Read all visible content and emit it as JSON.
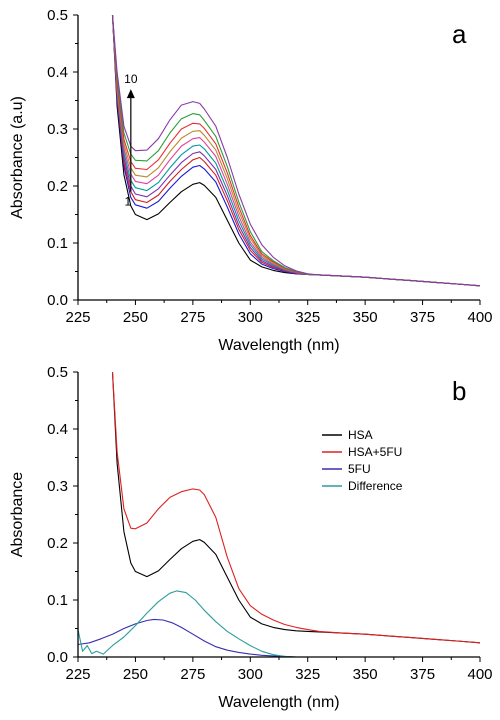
{
  "chart_data": [
    {
      "type": "line",
      "panel_label": "a",
      "xlabel": "Wavelength (nm)",
      "ylabel": "Absorbance (a.u)",
      "xlim": [
        225,
        400
      ],
      "ylim": [
        0,
        0.5
      ],
      "xticks": [
        225,
        250,
        275,
        300,
        325,
        350,
        375,
        400
      ],
      "yticks": [
        0.0,
        0.1,
        0.2,
        0.3,
        0.4,
        0.5
      ],
      "ytick_labels": [
        "0.0",
        "0.1",
        "0.2",
        "0.3",
        "0.4",
        "0.5"
      ],
      "grid": false,
      "annotation": {
        "top_label": "10",
        "bottom_label": "1",
        "x": 248,
        "y_start": 0.19,
        "y_end": 0.37
      },
      "x": [
        240,
        242,
        245,
        248,
        250,
        255,
        260,
        265,
        270,
        275,
        278,
        280,
        285,
        290,
        295,
        300,
        305,
        310,
        315,
        320,
        325,
        330,
        340,
        350,
        360,
        370,
        380,
        390,
        400
      ],
      "series": [
        {
          "color": "#000000",
          "values": [
            0.5,
            0.34,
            0.22,
            0.165,
            0.15,
            0.141,
            0.151,
            0.171,
            0.19,
            0.203,
            0.206,
            0.201,
            0.18,
            0.14,
            0.1,
            0.07,
            0.058,
            0.052,
            0.048,
            0.046,
            0.045,
            0.044,
            0.042,
            0.04,
            0.037,
            0.034,
            0.031,
            0.028,
            0.025
          ]
        },
        {
          "color": "#1a1ad6",
          "values": [
            0.5,
            0.35,
            0.235,
            0.18,
            0.167,
            0.161,
            0.173,
            0.196,
            0.217,
            0.233,
            0.236,
            0.23,
            0.207,
            0.163,
            0.116,
            0.081,
            0.063,
            0.055,
            0.05,
            0.046,
            0.045,
            0.044,
            0.042,
            0.04,
            0.037,
            0.034,
            0.031,
            0.028,
            0.025
          ]
        },
        {
          "color": "#d02020",
          "values": [
            0.5,
            0.355,
            0.242,
            0.19,
            0.176,
            0.171,
            0.184,
            0.208,
            0.229,
            0.246,
            0.25,
            0.243,
            0.219,
            0.174,
            0.124,
            0.087,
            0.066,
            0.057,
            0.051,
            0.047,
            0.045,
            0.044,
            0.042,
            0.04,
            0.037,
            0.034,
            0.031,
            0.028,
            0.025
          ]
        },
        {
          "color": "#7b2fb0",
          "values": [
            0.5,
            0.36,
            0.25,
            0.2,
            0.186,
            0.181,
            0.195,
            0.219,
            0.241,
            0.257,
            0.26,
            0.253,
            0.229,
            0.183,
            0.131,
            0.092,
            0.069,
            0.059,
            0.052,
            0.047,
            0.045,
            0.044,
            0.042,
            0.04,
            0.037,
            0.034,
            0.031,
            0.028,
            0.025
          ]
        },
        {
          "color": "#009999",
          "values": [
            0.5,
            0.365,
            0.258,
            0.21,
            0.197,
            0.192,
            0.206,
            0.232,
            0.255,
            0.27,
            0.272,
            0.265,
            0.24,
            0.193,
            0.139,
            0.097,
            0.072,
            0.061,
            0.053,
            0.048,
            0.045,
            0.044,
            0.042,
            0.04,
            0.037,
            0.034,
            0.031,
            0.028,
            0.025
          ]
        },
        {
          "color": "#e040a0",
          "values": [
            0.5,
            0.37,
            0.266,
            0.221,
            0.208,
            0.204,
            0.219,
            0.246,
            0.27,
            0.283,
            0.285,
            0.277,
            0.252,
            0.203,
            0.147,
            0.102,
            0.075,
            0.063,
            0.054,
            0.048,
            0.045,
            0.044,
            0.042,
            0.04,
            0.037,
            0.034,
            0.031,
            0.028,
            0.025
          ]
        },
        {
          "color": "#b88a2c",
          "values": [
            0.5,
            0.375,
            0.274,
            0.232,
            0.219,
            0.216,
            0.232,
            0.26,
            0.284,
            0.296,
            0.297,
            0.289,
            0.263,
            0.213,
            0.155,
            0.108,
            0.078,
            0.065,
            0.055,
            0.049,
            0.045,
            0.044,
            0.042,
            0.04,
            0.037,
            0.034,
            0.031,
            0.028,
            0.025
          ]
        },
        {
          "color": "#e83030",
          "values": [
            0.5,
            0.38,
            0.282,
            0.243,
            0.231,
            0.229,
            0.246,
            0.275,
            0.3,
            0.31,
            0.309,
            0.301,
            0.274,
            0.223,
            0.163,
            0.113,
            0.081,
            0.067,
            0.056,
            0.049,
            0.045,
            0.044,
            0.042,
            0.04,
            0.037,
            0.034,
            0.031,
            0.028,
            0.025
          ]
        },
        {
          "color": "#2a9e3a",
          "values": [
            0.5,
            0.39,
            0.293,
            0.256,
            0.245,
            0.244,
            0.262,
            0.293,
            0.318,
            0.327,
            0.325,
            0.315,
            0.287,
            0.234,
            0.172,
            0.12,
            0.085,
            0.069,
            0.057,
            0.05,
            0.045,
            0.044,
            0.042,
            0.04,
            0.037,
            0.034,
            0.031,
            0.028,
            0.025
          ]
        },
        {
          "color": "#8a3aa8",
          "values": [
            0.5,
            0.4,
            0.305,
            0.27,
            0.262,
            0.263,
            0.283,
            0.316,
            0.342,
            0.348,
            0.345,
            0.335,
            0.305,
            0.25,
            0.186,
            0.133,
            0.097,
            0.075,
            0.06,
            0.051,
            0.046,
            0.044,
            0.042,
            0.04,
            0.037,
            0.034,
            0.031,
            0.028,
            0.025
          ]
        }
      ]
    },
    {
      "type": "line",
      "panel_label": "b",
      "xlabel": "Wavelength (nm)",
      "ylabel": "Absorbance",
      "xlim": [
        225,
        400
      ],
      "ylim": [
        0,
        0.5
      ],
      "xticks": [
        225,
        250,
        275,
        300,
        325,
        350,
        375,
        400
      ],
      "yticks": [
        0.0,
        0.1,
        0.2,
        0.3,
        0.4,
        0.5
      ],
      "ytick_labels": [
        "0.0",
        "0.1",
        "0.2",
        "0.3",
        "0.4",
        "0.5"
      ],
      "grid": false,
      "legend_position": "right",
      "series": [
        {
          "name": "HSA",
          "color": "#000000",
          "x": [
            240,
            242,
            245,
            248,
            250,
            255,
            260,
            265,
            270,
            275,
            278,
            280,
            285,
            290,
            295,
            300,
            305,
            310,
            315,
            320,
            325,
            330,
            340,
            350,
            360,
            370,
            380,
            390,
            400
          ],
          "values": [
            0.5,
            0.34,
            0.22,
            0.165,
            0.15,
            0.141,
            0.151,
            0.171,
            0.19,
            0.203,
            0.206,
            0.201,
            0.18,
            0.14,
            0.1,
            0.07,
            0.058,
            0.052,
            0.048,
            0.046,
            0.045,
            0.044,
            0.042,
            0.04,
            0.037,
            0.034,
            0.031,
            0.028,
            0.025
          ]
        },
        {
          "name": "HSA+5FU",
          "color": "#e02020",
          "x": [
            240,
            242,
            245,
            248,
            250,
            255,
            260,
            265,
            270,
            275,
            278,
            280,
            285,
            290,
            295,
            300,
            305,
            310,
            315,
            320,
            325,
            330,
            340,
            350,
            360,
            370,
            380,
            390,
            400
          ],
          "values": [
            0.5,
            0.36,
            0.26,
            0.226,
            0.225,
            0.235,
            0.26,
            0.28,
            0.29,
            0.295,
            0.293,
            0.285,
            0.245,
            0.175,
            0.12,
            0.09,
            0.075,
            0.065,
            0.057,
            0.052,
            0.048,
            0.045,
            0.042,
            0.04,
            0.037,
            0.034,
            0.031,
            0.028,
            0.025
          ]
        },
        {
          "name": "5FU",
          "color": "#3a2fb0",
          "x": [
            225,
            230,
            235,
            240,
            245,
            250,
            255,
            258,
            262,
            266,
            270,
            275,
            280,
            285,
            290,
            295,
            300,
            305,
            310,
            315,
            320,
            330,
            350,
            375,
            400
          ],
          "values": [
            0.022,
            0.025,
            0.032,
            0.04,
            0.05,
            0.058,
            0.064,
            0.066,
            0.065,
            0.06,
            0.052,
            0.04,
            0.028,
            0.018,
            0.012,
            0.008,
            0.005,
            0.003,
            0.002,
            0.001,
            0.0,
            0.0,
            0.0,
            0.0,
            0.0
          ]
        },
        {
          "name": "Difference",
          "color": "#2a9e9e",
          "x": [
            225,
            227,
            229,
            231,
            233,
            236,
            240,
            245,
            250,
            255,
            260,
            265,
            268,
            272,
            276,
            280,
            285,
            290,
            295,
            300,
            305,
            310,
            315,
            320,
            330,
            350,
            375,
            400
          ],
          "values": [
            0.048,
            0.01,
            0.02,
            0.006,
            0.01,
            0.005,
            0.02,
            0.035,
            0.055,
            0.077,
            0.097,
            0.112,
            0.116,
            0.113,
            0.1,
            0.082,
            0.062,
            0.045,
            0.032,
            0.02,
            0.01,
            0.004,
            0.001,
            0.0,
            0.0,
            0.0,
            0.0,
            0.0
          ]
        }
      ]
    }
  ]
}
